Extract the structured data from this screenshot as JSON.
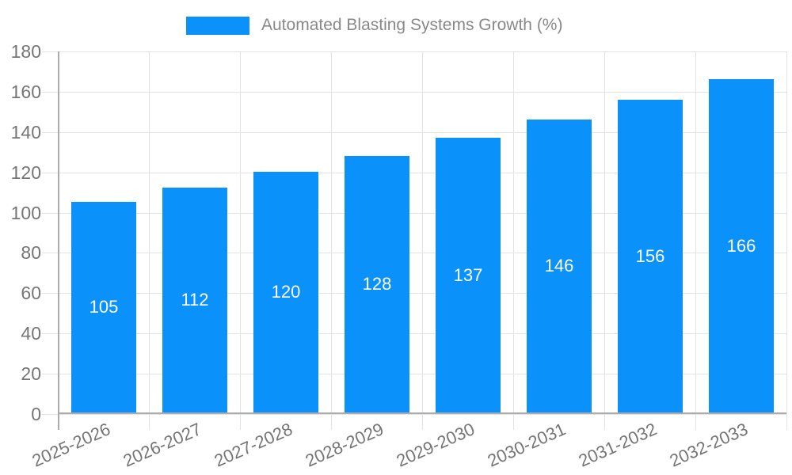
{
  "legend": {
    "label": "Automated Blasting Systems Growth (%)"
  },
  "chart_data": {
    "type": "bar",
    "title": "",
    "series_name": "Automated Blasting Systems Growth (%)",
    "categories": [
      "2025-2026",
      "2026-2027",
      "2027-2028",
      "2028-2029",
      "2029-2030",
      "2030-2031",
      "2031-2032",
      "2032-2033"
    ],
    "values": [
      105,
      112,
      120,
      128,
      137,
      146,
      156,
      166
    ],
    "value_labels": [
      "105",
      "112",
      "120",
      "128",
      "137",
      "146",
      "156",
      "166"
    ],
    "xlabel": "",
    "ylabel": "",
    "ylim": [
      0,
      180
    ],
    "yticks": [
      0,
      20,
      40,
      60,
      80,
      100,
      120,
      140,
      160,
      180
    ],
    "grid": true,
    "legend_position": "top",
    "bar_color": "#0a91fa",
    "bar_value_label_color": "#ffffff",
    "axis_label_color": "#757575",
    "legend_text_color": "#888888",
    "gridline_color": "#e3e3e3",
    "axis_line_color": "#ababab",
    "background_color": "#ffffff"
  }
}
